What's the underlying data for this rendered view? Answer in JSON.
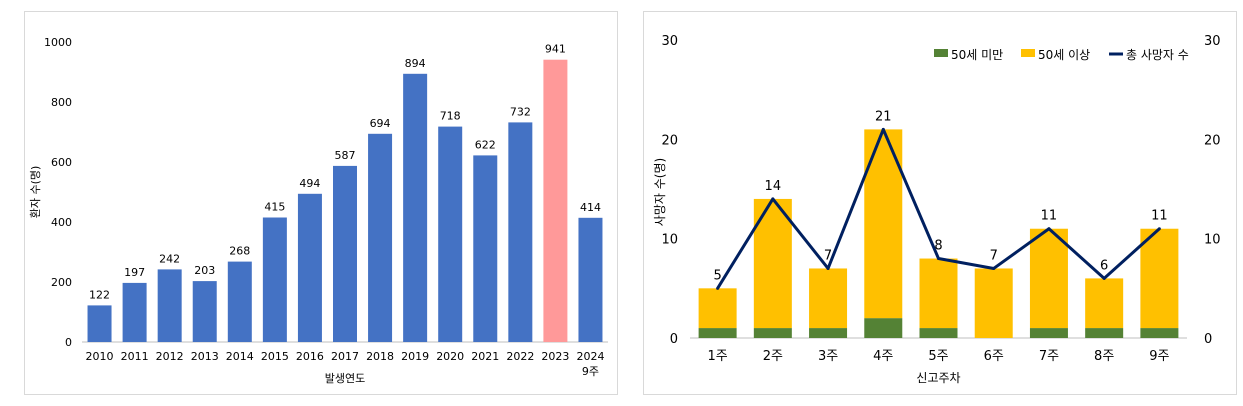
{
  "chart_data": [
    {
      "type": "bar",
      "title": "",
      "xlabel": "발생연도",
      "ylabel": "환자 수(명)",
      "ylim": [
        0,
        1000
      ],
      "yticks": [
        0,
        200,
        400,
        600,
        800,
        1000
      ],
      "grid": false,
      "categories": [
        "2010",
        "2011",
        "2012",
        "2013",
        "2014",
        "2015",
        "2016",
        "2017",
        "2018",
        "2019",
        "2020",
        "2021",
        "2022",
        "2023",
        "2024\n9주"
      ],
      "values": [
        122,
        197,
        242,
        203,
        268,
        415,
        494,
        587,
        694,
        894,
        718,
        622,
        732,
        941,
        414
      ],
      "colors": [
        "#4472c4",
        "#4472c4",
        "#4472c4",
        "#4472c4",
        "#4472c4",
        "#4472c4",
        "#4472c4",
        "#4472c4",
        "#4472c4",
        "#4472c4",
        "#4472c4",
        "#4472c4",
        "#4472c4",
        "#ff9999",
        "#4472c4"
      ]
    },
    {
      "type": "bar",
      "stacked": true,
      "title": "",
      "xlabel": "신고주차",
      "ylabel": "사망자 수(명)",
      "ylim": [
        0,
        30
      ],
      "yticks": [
        0,
        10,
        20,
        30
      ],
      "y2lim": [
        0,
        30
      ],
      "y2ticks": [
        0,
        10,
        20,
        30
      ],
      "grid": false,
      "legend_position": "top-right",
      "categories": [
        "1주",
        "2주",
        "3주",
        "4주",
        "5주",
        "6주",
        "7주",
        "8주",
        "9주"
      ],
      "series": [
        {
          "name": "50세 미만",
          "kind": "bar",
          "color": "#548235",
          "values": [
            1,
            1,
            1,
            2,
            1,
            0,
            1,
            1,
            1
          ]
        },
        {
          "name": "50세 이상",
          "kind": "bar",
          "color": "#ffc000",
          "values": [
            4,
            13,
            6,
            19,
            7,
            7,
            10,
            5,
            10
          ]
        },
        {
          "name": "총 사망자 수",
          "kind": "line",
          "color": "#002060",
          "values": [
            5,
            14,
            7,
            21,
            8,
            7,
            11,
            6,
            11
          ]
        }
      ]
    }
  ]
}
